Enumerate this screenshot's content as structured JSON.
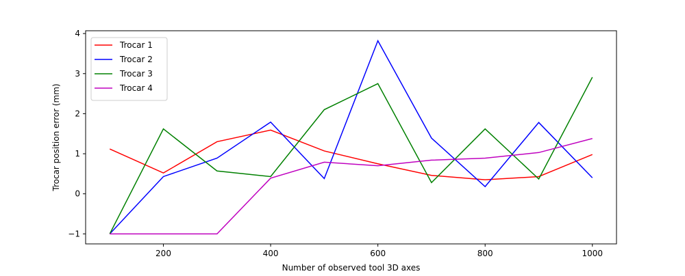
{
  "chart_data": {
    "type": "line",
    "title": "",
    "xlabel": "Number of observed tool 3D axes",
    "ylabel": "Trocar position error (mm)",
    "x": [
      100,
      200,
      300,
      400,
      500,
      600,
      700,
      800,
      900,
      1000
    ],
    "xlim": [
      55,
      1045
    ],
    "ylim": [
      -1.25,
      4.07
    ],
    "xticks": [
      200,
      400,
      600,
      800,
      1000
    ],
    "yticks": [
      -1,
      0,
      1,
      2,
      3,
      4
    ],
    "ytick_labels": [
      "−1",
      "0",
      "1",
      "2",
      "3",
      "4"
    ],
    "grid": false,
    "legend_position": "upper-left",
    "series": [
      {
        "name": "Trocar 1",
        "color": "#ff0000",
        "values": [
          1.12,
          0.52,
          1.3,
          1.59,
          1.07,
          0.75,
          0.46,
          0.35,
          0.43,
          0.98
        ]
      },
      {
        "name": "Trocar 2",
        "color": "#0000ff",
        "values": [
          -1.0,
          0.43,
          0.89,
          1.79,
          0.38,
          3.82,
          1.39,
          0.18,
          1.78,
          0.4
        ]
      },
      {
        "name": "Trocar 3",
        "color": "#008000",
        "values": [
          -1.0,
          1.62,
          0.57,
          0.43,
          2.1,
          2.75,
          0.28,
          1.62,
          0.37,
          2.91
        ]
      },
      {
        "name": "Trocar 4",
        "color": "#bf00bf",
        "values": [
          -1.0,
          -1.0,
          -1.0,
          0.39,
          0.79,
          0.7,
          0.84,
          0.89,
          1.03,
          1.38
        ]
      }
    ]
  }
}
